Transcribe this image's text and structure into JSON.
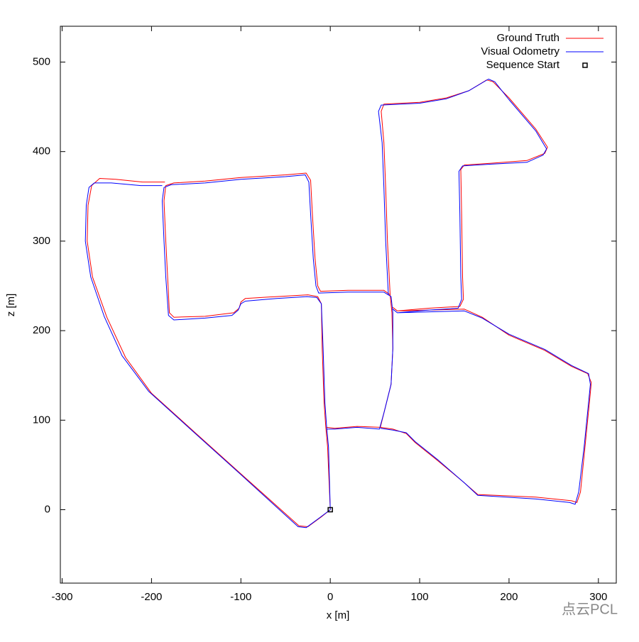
{
  "chart_data": {
    "type": "line",
    "xlabel": "x [m]",
    "ylabel": "z [m]",
    "xlim": [
      -302,
      320
    ],
    "ylim": [
      -82,
      540
    ],
    "xticks": [
      -300,
      -200,
      -100,
      0,
      100,
      200,
      300
    ],
    "yticks": [
      0,
      100,
      200,
      300,
      400,
      500
    ],
    "legend": "top-right",
    "watermark": "点云PCL",
    "series": [
      {
        "name": "Ground Truth",
        "color": "#ff0000",
        "style": "line",
        "x": [
          0,
          -3,
          -5,
          -7,
          -9,
          -10,
          -14,
          -25,
          -60,
          -95,
          -100,
          -102,
          -108,
          -140,
          -175,
          -180,
          -182,
          -184,
          -186,
          -184,
          -175,
          -140,
          -100,
          -50,
          -27,
          -22,
          -20,
          -17,
          -14,
          -11,
          20,
          60,
          67,
          69,
          70,
          68,
          60,
          56,
          30,
          5,
          -4,
          null,
          0,
          -10,
          -25,
          -35,
          -100,
          -150,
          -200,
          -229,
          -250,
          -266,
          -272,
          -271,
          -267,
          -258,
          -240,
          -210,
          -185,
          null,
          67,
          64,
          62,
          60,
          57,
          60,
          100,
          130,
          155,
          175,
          182,
          200,
          230,
          243,
          240,
          220,
          180,
          150,
          146,
          147,
          148,
          149,
          145,
          110,
          75,
          70,
          null,
          75,
          110,
          150,
          170,
          200,
          240,
          270,
          288,
          292,
          290,
          285,
          280,
          276,
          270,
          230,
          165,
          150,
          120,
          95,
          85,
          70,
          56
        ],
        "values": [
          0,
          70,
          92,
          120,
          180,
          230,
          238,
          240,
          238,
          236,
          232,
          225,
          220,
          216,
          215,
          220,
          260,
          300,
          345,
          362,
          365,
          367,
          371,
          374,
          376,
          368,
          330,
          280,
          250,
          244,
          245,
          245,
          240,
          220,
          180,
          140,
          108,
          92,
          93,
          91,
          92,
          null,
          0,
          -8,
          -19,
          -18,
          40,
          85,
          130,
          170,
          215,
          260,
          300,
          340,
          362,
          370,
          369,
          366,
          366,
          null,
          240,
          300,
          360,
          410,
          445,
          453,
          455,
          460,
          468,
          480,
          478,
          460,
          425,
          405,
          398,
          390,
          387,
          385,
          380,
          330,
          260,
          235,
          227,
          225,
          222,
          226,
          null,
          222,
          223,
          224,
          215,
          195,
          178,
          160,
          152,
          142,
          120,
          70,
          20,
          8,
          10,
          14,
          17,
          30,
          55,
          75,
          85,
          90,
          92
        ]
      },
      {
        "name": "Visual Odometry",
        "color": "#0000ff",
        "style": "line",
        "x": [
          0,
          -2,
          -4,
          -6,
          -8,
          -10,
          -15,
          -26,
          -60,
          -95,
          -100,
          -103,
          -110,
          -140,
          -175,
          -181,
          -184,
          -186,
          -188,
          -186,
          -178,
          -140,
          -100,
          -50,
          -28,
          -24,
          -22,
          -19,
          -16,
          -13,
          20,
          60,
          68,
          70,
          70,
          68,
          60,
          55,
          30,
          5,
          -4,
          null,
          0,
          -12,
          -27,
          -36,
          -102,
          -152,
          -203,
          -233,
          -253,
          -268,
          -274,
          -273,
          -270,
          -264,
          -245,
          -212,
          -188,
          null,
          65,
          62,
          60,
          58,
          54,
          57,
          100,
          130,
          155,
          177,
          184,
          200,
          230,
          242,
          238,
          220,
          180,
          148,
          144,
          145,
          146,
          147,
          143,
          110,
          75,
          70,
          null,
          75,
          110,
          150,
          170,
          200,
          240,
          270,
          289,
          291,
          289,
          284,
          278,
          274,
          268,
          230,
          165,
          150,
          120,
          95,
          85,
          70,
          56
        ],
        "values": [
          0,
          70,
          92,
          120,
          180,
          230,
          237,
          238,
          236,
          233,
          230,
          223,
          217,
          214,
          212,
          217,
          260,
          300,
          345,
          360,
          363,
          365,
          369,
          372,
          374,
          366,
          330,
          280,
          250,
          242,
          243,
          243,
          238,
          220,
          180,
          140,
          108,
          90,
          92,
          90,
          90,
          null,
          0,
          -9,
          -20,
          -19,
          41,
          86,
          132,
          172,
          216,
          260,
          300,
          340,
          360,
          365,
          365,
          362,
          362,
          null,
          240,
          300,
          360,
          410,
          445,
          452,
          454,
          459,
          468,
          481,
          478,
          458,
          423,
          403,
          396,
          388,
          386,
          384,
          378,
          330,
          260,
          235,
          225,
          223,
          220,
          224,
          null,
          220,
          221,
          222,
          214,
          196,
          179,
          161,
          152,
          140,
          120,
          70,
          20,
          6,
          8,
          12,
          16,
          30,
          56,
          76,
          86,
          89,
          91
        ]
      },
      {
        "name": "Sequence Start",
        "color": "#000000",
        "style": "point",
        "x": [
          0
        ],
        "values": [
          0
        ]
      }
    ]
  }
}
